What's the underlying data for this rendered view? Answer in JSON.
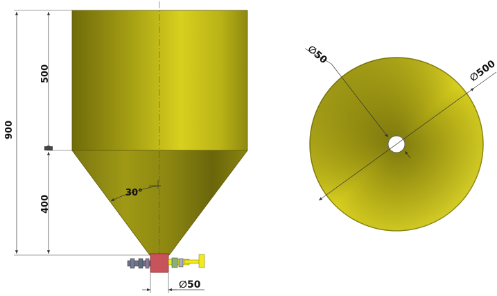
{
  "side_view": {
    "dim_total_height": "900",
    "dim_cylinder_height": "500",
    "dim_cone_height": "400",
    "angle_label": "30°",
    "outlet_diameter": "∅50"
  },
  "top_view": {
    "inner_diameter": "∅50",
    "outer_diameter": "∅500"
  },
  "colors": {
    "body_light": "#d4cc1c",
    "body_dark": "#6f6b0a",
    "outlet": "#c9535a",
    "valve_yellow": "#f2ea1a",
    "dimension_line": "#333333"
  }
}
